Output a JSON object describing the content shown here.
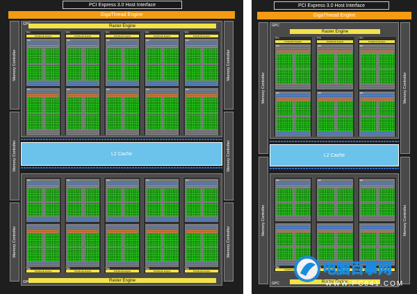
{
  "left": {
    "pcie": "PCI Express 3.0 Host Interface",
    "giga": "GigaThread Engine",
    "gpc_label": "GPC",
    "raster": "Raster Engine",
    "tpc_label": "TPC",
    "poly_label": "PolyMorph Engine",
    "sm_label": "SM",
    "memory_controller": "Memory Controller",
    "l2": "L2 Cache"
  },
  "right": {
    "pcie": "PCI Express 3.0 Host Interface",
    "giga": "GigaThread Engine",
    "gpc_label": "GPC",
    "raster": "Raster Engine",
    "tpc_label": "TPC",
    "poly_label": "PolyMorph Engine",
    "sm_label": "SM",
    "memory_controller": "Memory Controller",
    "l2": "L2 Cache"
  },
  "watermark": {
    "brand": "电脑百事网",
    "url": "WWW.PC841.COM"
  },
  "colors": {
    "background": "#1e1e1e",
    "giga": "#f39c12",
    "raster": "#f2e24a",
    "l2": "#6bc2ea",
    "cores": "#28c21c",
    "interconnect": "#2a6fd6"
  }
}
